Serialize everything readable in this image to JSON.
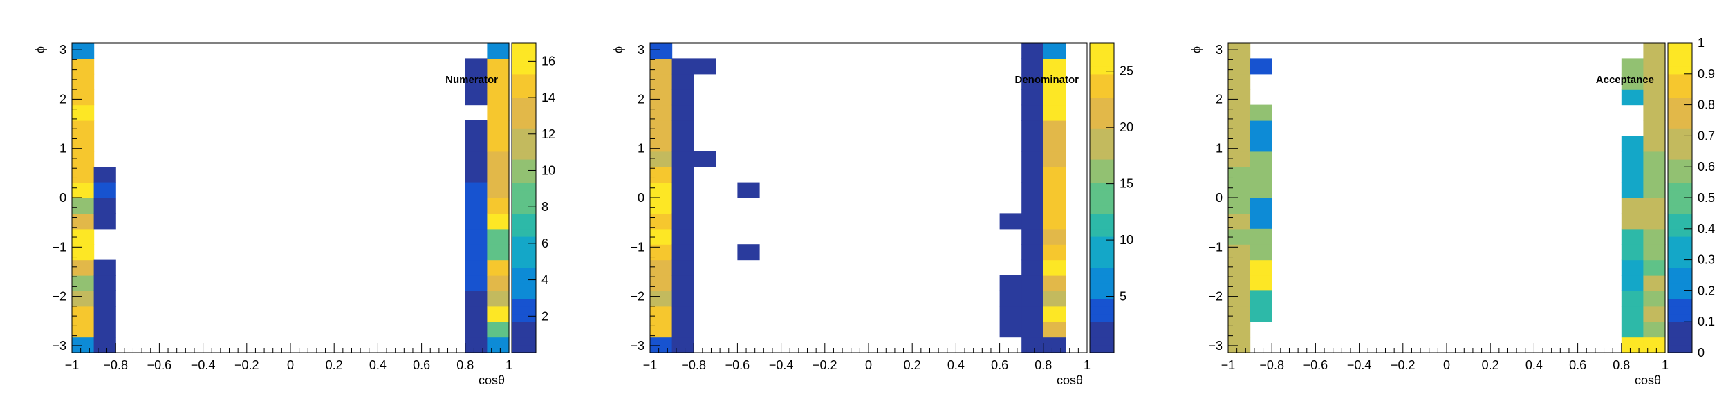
{
  "chart_data": [
    {
      "type": "heatmap",
      "title": "Numerator",
      "xlabel": "cosθ",
      "ylabel": "ϕ",
      "xlim": [
        -1,
        1
      ],
      "ylim": [
        -3.14159,
        3.14159
      ],
      "x_bins": 20,
      "y_bins": 20,
      "z_range": [
        0,
        17
      ],
      "colorbar_ticks": [
        2,
        4,
        6,
        8,
        10,
        12,
        14,
        16
      ],
      "x_ticks": [
        "−1",
        "−0.8",
        "−0.6",
        "−0.4",
        "−0.2",
        "0",
        "0.2",
        "0.4",
        "0.6",
        "0.8",
        "1"
      ],
      "y_ticks": [
        "−3",
        "−2",
        "−1",
        "0",
        "1",
        "2",
        "3"
      ],
      "cells": [
        [
          0,
          0,
          4
        ],
        [
          0,
          1,
          15
        ],
        [
          0,
          2,
          14
        ],
        [
          0,
          3,
          11
        ],
        [
          0,
          4,
          10
        ],
        [
          0,
          5,
          13
        ],
        [
          0,
          6,
          16
        ],
        [
          0,
          7,
          17
        ],
        [
          0,
          8,
          13
        ],
        [
          0,
          9,
          10
        ],
        [
          0,
          10,
          17
        ],
        [
          0,
          11,
          14
        ],
        [
          0,
          12,
          15
        ],
        [
          0,
          13,
          15
        ],
        [
          0,
          14,
          15
        ],
        [
          0,
          15,
          17
        ],
        [
          0,
          16,
          15
        ],
        [
          0,
          17,
          15
        ],
        [
          0,
          18,
          15
        ],
        [
          0,
          19,
          4
        ],
        [
          1,
          11,
          1
        ],
        [
          1,
          8,
          1
        ],
        [
          1,
          9,
          1
        ],
        [
          1,
          10,
          3
        ],
        [
          1,
          3,
          1
        ],
        [
          1,
          4,
          1
        ],
        [
          1,
          5,
          1
        ],
        [
          1,
          2,
          1
        ],
        [
          1,
          1,
          1
        ],
        [
          1,
          0,
          1
        ],
        [
          18,
          0,
          1
        ],
        [
          18,
          1,
          1
        ],
        [
          18,
          2,
          1
        ],
        [
          18,
          3,
          1
        ],
        [
          18,
          4,
          1
        ],
        [
          18,
          5,
          1
        ],
        [
          18,
          6,
          1
        ],
        [
          18,
          7,
          1
        ],
        [
          18,
          8,
          1
        ],
        [
          18,
          9,
          1
        ],
        [
          18,
          10,
          1
        ],
        [
          18,
          11,
          1
        ],
        [
          18,
          12,
          1
        ],
        [
          18,
          13,
          1
        ],
        [
          18,
          14,
          1
        ],
        [
          18,
          16,
          1
        ],
        [
          18,
          17,
          1
        ],
        [
          18,
          18,
          1
        ],
        [
          18,
          4,
          2
        ],
        [
          18,
          5,
          2
        ],
        [
          18,
          6,
          2
        ],
        [
          18,
          7,
          2
        ],
        [
          18,
          8,
          2
        ],
        [
          18,
          9,
          2
        ],
        [
          18,
          10,
          2
        ],
        [
          19,
          0,
          4
        ],
        [
          19,
          1,
          8
        ],
        [
          19,
          2,
          17
        ],
        [
          19,
          3,
          12
        ],
        [
          19,
          4,
          13
        ],
        [
          19,
          5,
          14
        ],
        [
          19,
          6,
          8
        ],
        [
          19,
          7,
          9
        ],
        [
          19,
          8,
          16
        ],
        [
          19,
          9,
          14
        ],
        [
          19,
          10,
          13
        ],
        [
          19,
          11,
          13
        ],
        [
          19,
          12,
          13
        ],
        [
          19,
          13,
          14
        ],
        [
          19,
          14,
          15
        ],
        [
          19,
          15,
          15
        ],
        [
          19,
          16,
          15
        ],
        [
          19,
          17,
          14
        ],
        [
          19,
          18,
          14
        ],
        [
          19,
          19,
          4
        ]
      ]
    },
    {
      "type": "heatmap",
      "title": "Denominator",
      "xlabel": "cosθ",
      "ylabel": "ϕ",
      "xlim": [
        -1,
        1
      ],
      "ylim": [
        -3.14159,
        3.14159
      ],
      "x_bins": 20,
      "y_bins": 20,
      "z_range": [
        0,
        27.5
      ],
      "colorbar_ticks": [
        5,
        10,
        15,
        20,
        25
      ],
      "x_ticks": [
        "−1",
        "−0.8",
        "−0.6",
        "−0.4",
        "−0.2",
        "0",
        "0.2",
        "0.4",
        "0.6",
        "0.8",
        "1"
      ],
      "y_ticks": [
        "−3",
        "−2",
        "−1",
        "0",
        "1",
        "2",
        "3"
      ],
      "cells": [
        [
          0,
          0,
          4
        ],
        [
          0,
          1,
          23
        ],
        [
          0,
          2,
          23
        ],
        [
          0,
          3,
          19
        ],
        [
          0,
          4,
          21
        ],
        [
          0,
          5,
          22
        ],
        [
          0,
          6,
          24
        ],
        [
          0,
          7,
          25
        ],
        [
          0,
          8,
          24
        ],
        [
          0,
          9,
          27
        ],
        [
          0,
          10,
          25
        ],
        [
          0,
          11,
          24
        ],
        [
          0,
          12,
          18
        ],
        [
          0,
          13,
          20
        ],
        [
          0,
          14,
          20
        ],
        [
          0,
          15,
          22
        ],
        [
          0,
          16,
          22
        ],
        [
          0,
          17,
          22
        ],
        [
          0,
          18,
          22
        ],
        [
          0,
          19,
          4
        ],
        [
          1,
          0,
          1
        ],
        [
          1,
          1,
          1
        ],
        [
          1,
          2,
          2
        ],
        [
          1,
          3,
          1
        ],
        [
          1,
          4,
          1
        ],
        [
          1,
          5,
          1
        ],
        [
          1,
          6,
          1
        ],
        [
          1,
          7,
          1
        ],
        [
          1,
          8,
          1
        ],
        [
          1,
          9,
          2
        ],
        [
          1,
          10,
          2
        ],
        [
          1,
          11,
          1
        ],
        [
          1,
          12,
          1
        ],
        [
          1,
          13,
          1
        ],
        [
          1,
          14,
          1
        ],
        [
          1,
          15,
          2
        ],
        [
          1,
          16,
          2
        ],
        [
          1,
          17,
          2
        ],
        [
          1,
          18,
          2
        ],
        [
          2,
          12,
          1
        ],
        [
          2,
          18,
          1
        ],
        [
          4,
          10,
          1
        ],
        [
          4,
          6,
          1
        ],
        [
          16,
          1,
          1
        ],
        [
          16,
          2,
          1
        ],
        [
          16,
          3,
          1
        ],
        [
          16,
          4,
          1
        ],
        [
          16,
          8,
          1
        ],
        [
          17,
          0,
          1
        ],
        [
          17,
          1,
          1
        ],
        [
          17,
          2,
          1
        ],
        [
          17,
          3,
          2
        ],
        [
          17,
          4,
          2
        ],
        [
          17,
          5,
          2
        ],
        [
          17,
          6,
          2
        ],
        [
          17,
          7,
          2
        ],
        [
          17,
          8,
          2
        ],
        [
          17,
          9,
          2
        ],
        [
          17,
          10,
          2
        ],
        [
          17,
          11,
          2
        ],
        [
          17,
          12,
          2
        ],
        [
          17,
          13,
          1
        ],
        [
          17,
          14,
          1
        ],
        [
          17,
          15,
          2
        ],
        [
          17,
          16,
          2
        ],
        [
          17,
          17,
          1
        ],
        [
          17,
          18,
          1
        ],
        [
          17,
          19,
          1
        ],
        [
          18,
          0,
          1
        ],
        [
          18,
          1,
          20
        ],
        [
          18,
          2,
          27
        ],
        [
          18,
          3,
          18
        ],
        [
          18,
          4,
          22
        ],
        [
          18,
          5,
          25
        ],
        [
          18,
          6,
          23
        ],
        [
          18,
          7,
          20
        ],
        [
          18,
          8,
          23
        ],
        [
          18,
          9,
          23
        ],
        [
          18,
          10,
          23
        ],
        [
          18,
          11,
          23
        ],
        [
          18,
          12,
          20
        ],
        [
          18,
          13,
          20
        ],
        [
          18,
          14,
          20
        ],
        [
          18,
          15,
          27
        ],
        [
          18,
          16,
          27
        ],
        [
          18,
          17,
          27
        ],
        [
          18,
          18,
          27
        ],
        [
          18,
          19,
          5
        ]
      ]
    },
    {
      "type": "heatmap",
      "title": "Acceptance",
      "xlabel": "cosθ",
      "ylabel": "ϕ",
      "xlim": [
        -1,
        1
      ],
      "ylim": [
        -3.14159,
        3.14159
      ],
      "x_bins": 20,
      "y_bins": 20,
      "z_range": [
        0,
        1
      ],
      "colorbar_ticks": [
        0,
        0.1,
        0.2,
        0.3,
        0.4,
        0.5,
        0.6,
        0.7,
        0.8,
        0.9,
        1
      ],
      "x_ticks": [
        "−1",
        "−0.8",
        "−0.6",
        "−0.4",
        "−0.2",
        "0",
        "0.2",
        "0.4",
        "0.6",
        "0.8",
        "1"
      ],
      "y_ticks": [
        "−3",
        "−2",
        "−1",
        "0",
        "1",
        "2",
        "3"
      ],
      "cells": [
        [
          0,
          0,
          0.65
        ],
        [
          0,
          1,
          0.65
        ],
        [
          0,
          2,
          0.65
        ],
        [
          0,
          3,
          0.65
        ],
        [
          0,
          4,
          0.65
        ],
        [
          0,
          5,
          0.65
        ],
        [
          0,
          6,
          0.65
        ],
        [
          0,
          7,
          0.58
        ],
        [
          0,
          8,
          0.65
        ],
        [
          0,
          9,
          0.55
        ],
        [
          0,
          10,
          0.55
        ],
        [
          0,
          11,
          0.62
        ],
        [
          0,
          12,
          0.65
        ],
        [
          0,
          13,
          0.65
        ],
        [
          0,
          14,
          0.65
        ],
        [
          0,
          15,
          0.7
        ],
        [
          0,
          16,
          0.7
        ],
        [
          0,
          17,
          0.7
        ],
        [
          0,
          18,
          0.7
        ],
        [
          0,
          19,
          0.7
        ],
        [
          1,
          18,
          0.12
        ],
        [
          1,
          4,
          0.95
        ],
        [
          1,
          5,
          0.95
        ],
        [
          1,
          3,
          0.45
        ],
        [
          1,
          2,
          0.45
        ],
        [
          1,
          8,
          0.25
        ],
        [
          1,
          9,
          0.25
        ],
        [
          1,
          10,
          0.62
        ],
        [
          1,
          11,
          0.62
        ],
        [
          1,
          12,
          0.62
        ],
        [
          1,
          13,
          0.25
        ],
        [
          1,
          14,
          0.25
        ],
        [
          1,
          15,
          0.62
        ],
        [
          1,
          6,
          0.62
        ],
        [
          1,
          7,
          0.62
        ],
        [
          18,
          0,
          1
        ],
        [
          18,
          1,
          0.45
        ],
        [
          18,
          2,
          0.45
        ],
        [
          18,
          3,
          0.4
        ],
        [
          18,
          4,
          0.35
        ],
        [
          18,
          5,
          0.35
        ],
        [
          18,
          6,
          0.4
        ],
        [
          18,
          7,
          0.4
        ],
        [
          18,
          8,
          0.65
        ],
        [
          18,
          9,
          0.65
        ],
        [
          18,
          10,
          0.3
        ],
        [
          18,
          11,
          0.3
        ],
        [
          18,
          12,
          0.3
        ],
        [
          18,
          13,
          0.3
        ],
        [
          18,
          16,
          0.3
        ],
        [
          18,
          17,
          0.55
        ],
        [
          18,
          18,
          0.55
        ],
        [
          19,
          0,
          1
        ],
        [
          19,
          1,
          0.55
        ],
        [
          19,
          2,
          0.65
        ],
        [
          19,
          3,
          0.55
        ],
        [
          19,
          4,
          0.65
        ],
        [
          19,
          5,
          0.5
        ],
        [
          19,
          6,
          0.55
        ],
        [
          19,
          7,
          0.55
        ],
        [
          19,
          8,
          0.65
        ],
        [
          19,
          9,
          0.65
        ],
        [
          19,
          10,
          0.55
        ],
        [
          19,
          11,
          0.6
        ],
        [
          19,
          12,
          0.55
        ],
        [
          19,
          13,
          0.65
        ],
        [
          19,
          14,
          0.65
        ],
        [
          19,
          15,
          0.65
        ],
        [
          19,
          16,
          0.65
        ],
        [
          19,
          17,
          0.7
        ],
        [
          19,
          18,
          0.7
        ],
        [
          19,
          19,
          0.7
        ]
      ]
    }
  ]
}
